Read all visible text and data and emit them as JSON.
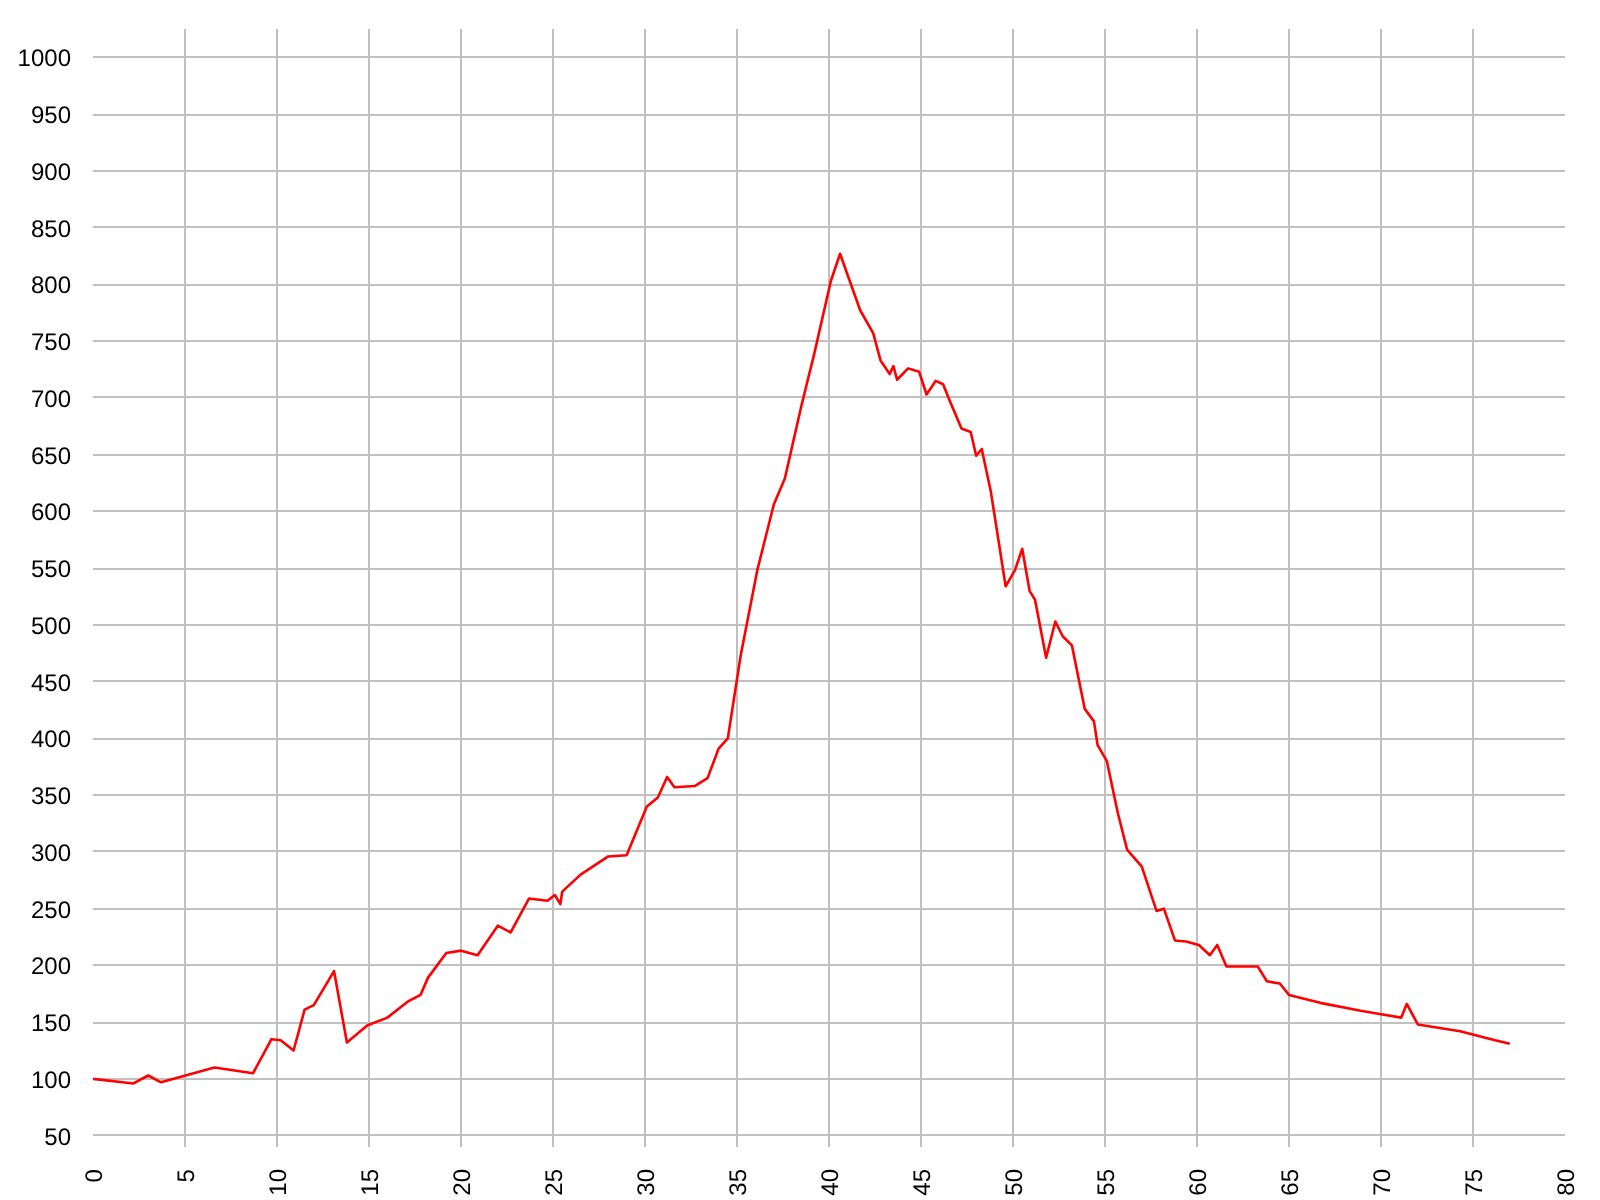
{
  "chart_data": {
    "type": "line",
    "x": [
      0,
      2.2,
      3,
      3.7,
      6.6,
      8.7,
      9.7,
      10.2,
      10.9,
      11.5,
      12,
      13.1,
      13.8,
      14.9,
      16,
      17.1,
      17.8,
      18.2,
      19.2,
      20,
      20.9,
      22,
      22.7,
      23.7,
      24.7,
      25.1,
      25.4,
      25.5,
      26.5,
      28,
      29,
      30.1,
      30.7,
      31.2,
      31.6,
      32.7,
      33.4,
      34,
      34.5,
      35.2,
      36.1,
      37,
      37.6,
      38.5,
      39.2,
      40.1,
      40.6,
      41.7,
      42.4,
      42.8,
      43.3,
      43.5,
      43.7,
      44.3,
      44.9,
      45.3,
      45.8,
      46.2,
      46.6,
      47.2,
      47.7,
      48,
      48.3,
      48.8,
      49.6,
      50.1,
      50.5,
      50.9,
      51.2,
      51.8,
      52.3,
      52.7,
      53.2,
      53.9,
      54.4,
      54.6,
      55.1,
      55.7,
      56.2,
      57,
      57.8,
      58.2,
      58.8,
      59.4,
      60.1,
      60.7,
      61.1,
      61.6,
      63.3,
      63.8,
      64.5,
      65,
      66.7,
      68.9,
      70,
      71.1,
      71.4,
      72,
      74.3,
      76.2,
      77
    ],
    "values": [
      100,
      96,
      103,
      97,
      110,
      105,
      135,
      134,
      125,
      161,
      165,
      195,
      132,
      147,
      154,
      168,
      174,
      189,
      211,
      213,
      209,
      235,
      229,
      259,
      257,
      262,
      254,
      265,
      280,
      296,
      297,
      340,
      348,
      366,
      357,
      358,
      365,
      391,
      400,
      473,
      548,
      606,
      629,
      693,
      739,
      803,
      827,
      777,
      757,
      733,
      721,
      728,
      716,
      726,
      723,
      703,
      715,
      712,
      696,
      673,
      670,
      649,
      655,
      617,
      534,
      548,
      567,
      530,
      522,
      471,
      503,
      490,
      482,
      426,
      415,
      394,
      380,
      334,
      302,
      287,
      248,
      250,
      222,
      221,
      218,
      209,
      218,
      199,
      199,
      186,
      184,
      174,
      167,
      160,
      157,
      154,
      166,
      148,
      142,
      134,
      131
    ],
    "color": "#ff0000",
    "xlim": [
      0,
      80
    ],
    "ylim": [
      40,
      1025
    ],
    "xticks": [
      0,
      5,
      10,
      15,
      20,
      25,
      30,
      35,
      40,
      45,
      50,
      55,
      60,
      65,
      70,
      75,
      80
    ],
    "yticks": [
      50,
      100,
      150,
      200,
      250,
      300,
      350,
      400,
      450,
      500,
      550,
      600,
      650,
      700,
      750,
      800,
      850,
      900,
      950,
      1000
    ],
    "grid": true
  }
}
